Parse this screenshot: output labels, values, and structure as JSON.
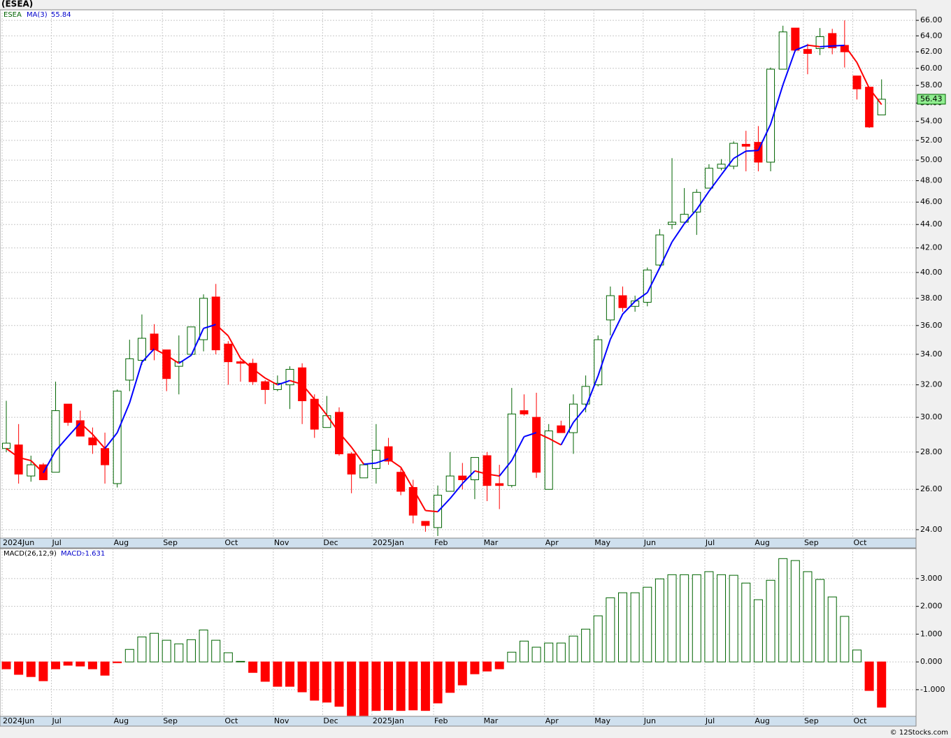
{
  "chart_data": [
    {
      "type": "candlestick",
      "title": "(ESEA)",
      "symbol": "ESEA",
      "ma_name": "MA(3)",
      "categories": [
        "2024Jun",
        null,
        null,
        null,
        "Jul",
        null,
        null,
        null,
        null,
        "Aug",
        null,
        null,
        null,
        "Sep",
        null,
        null,
        null,
        null,
        "Oct",
        null,
        null,
        null,
        "Nov",
        null,
        null,
        null,
        "Dec",
        null,
        null,
        null,
        "2025Jan",
        null,
        null,
        null,
        null,
        "Feb",
        null,
        null,
        null,
        "Mar",
        null,
        null,
        null,
        null,
        "Apr",
        null,
        null,
        null,
        "May",
        null,
        null,
        null,
        "Jun",
        null,
        null,
        null,
        null,
        "Jul",
        null,
        null,
        null,
        "Aug",
        null,
        null,
        null,
        "Sep",
        null,
        null,
        null,
        "Oct",
        null,
        null
      ],
      "open": [
        28.2,
        28.4,
        26.7,
        27.3,
        26.9,
        30.8,
        29.8,
        28.8,
        28.2,
        26.3,
        32.3,
        33.6,
        35.4,
        34.3,
        33.2,
        34.0,
        35.0,
        38.1,
        34.7,
        33.5,
        33.4,
        32.2,
        31.7,
        32.0,
        33.1,
        31.1,
        29.4,
        30.3,
        27.9,
        26.6,
        27.1,
        28.3,
        26.9,
        26.1,
        24.4,
        24.1,
        25.9,
        26.7,
        26.5,
        27.8,
        26.3,
        26.2,
        30.4,
        30.0,
        26.0,
        29.5,
        29.1,
        30.8,
        32.0,
        36.4,
        38.2,
        37.4,
        37.7,
        40.6,
        44.0,
        44.2,
        45.1,
        47.3,
        49.2,
        49.4,
        51.6,
        51.8,
        49.8,
        59.9,
        65.0,
        62.3,
        62.4,
        64.3,
        62.8,
        59.1,
        57.8,
        54.7
      ],
      "high": [
        31.0,
        29.6,
        27.8,
        27.4,
        32.2,
        30.8,
        30.4,
        29.4,
        29.1,
        31.7,
        35.0,
        36.8,
        36.1,
        34.3,
        35.3,
        35.9,
        38.3,
        39.1,
        34.9,
        33.6,
        33.7,
        32.3,
        32.6,
        33.2,
        33.4,
        31.4,
        31.3,
        30.6,
        28.0,
        27.4,
        29.6,
        28.8,
        27.1,
        26.5,
        24.4,
        26.2,
        28.0,
        27.4,
        27.7,
        28.0,
        27.3,
        31.8,
        31.4,
        31.5,
        29.6,
        29.8,
        31.4,
        32.6,
        35.3,
        38.9,
        38.9,
        38.2,
        40.4,
        43.6,
        50.2,
        47.3,
        47.2,
        49.6,
        50.1,
        51.9,
        53.0,
        53.5,
        60.1,
        65.3,
        65.0,
        63.0,
        65.0,
        64.9,
        66.0,
        59.1,
        57.8,
        58.7
      ],
      "low": [
        28.0,
        26.3,
        26.4,
        26.5,
        26.9,
        29.5,
        28.9,
        27.9,
        26.3,
        26.1,
        31.6,
        33.3,
        33.6,
        31.6,
        31.4,
        33.9,
        34.2,
        34.0,
        32.0,
        32.2,
        32.0,
        30.8,
        31.6,
        30.5,
        29.6,
        28.8,
        29.4,
        27.8,
        25.8,
        26.6,
        26.3,
        27.3,
        25.7,
        24.3,
        23.9,
        23.7,
        25.9,
        26.0,
        25.5,
        25.4,
        25.0,
        26.1,
        30.1,
        26.6,
        26.0,
        29.1,
        27.9,
        30.3,
        31.9,
        35.3,
        37.0,
        37.0,
        37.4,
        40.5,
        43.6,
        44.2,
        43.1,
        47.3,
        49.0,
        49.1,
        48.9,
        48.9,
        48.9,
        59.9,
        62.0,
        59.3,
        61.6,
        61.7,
        60.1,
        56.4,
        53.3,
        54.7
      ],
      "close": [
        28.5,
        26.8,
        27.3,
        26.5,
        30.4,
        29.7,
        28.9,
        28.4,
        27.3,
        31.6,
        33.7,
        35.1,
        34.3,
        32.4,
        33.5,
        35.9,
        38.0,
        34.3,
        33.5,
        33.4,
        32.2,
        31.7,
        32.1,
        33.0,
        31.0,
        29.3,
        30.1,
        27.9,
        26.8,
        27.3,
        28.1,
        27.5,
        25.9,
        24.7,
        24.2,
        25.7,
        26.7,
        26.5,
        27.7,
        26.2,
        26.2,
        30.2,
        30.2,
        26.9,
        29.2,
        29.1,
        30.8,
        31.9,
        35.0,
        38.2,
        37.3,
        37.8,
        40.2,
        43.1,
        44.2,
        44.9,
        46.9,
        49.2,
        49.6,
        51.7,
        51.4,
        49.8,
        59.9,
        64.5,
        62.2,
        61.8,
        63.9,
        62.5,
        62.0,
        57.6,
        53.4,
        56.43
      ],
      "last_price_label": "56.43",
      "ma": {
        "values": [
          28.2,
          27.7,
          27.53,
          26.87,
          28.07,
          28.87,
          29.67,
          29.0,
          28.2,
          29.1,
          30.87,
          33.47,
          34.37,
          33.93,
          33.4,
          33.93,
          35.8,
          36.07,
          35.27,
          33.73,
          33.03,
          32.43,
          32.0,
          32.27,
          32.03,
          31.1,
          30.13,
          29.1,
          28.27,
          27.33,
          27.4,
          27.63,
          27.17,
          26.03,
          24.93,
          24.87,
          25.53,
          26.3,
          26.97,
          26.8,
          26.7,
          27.53,
          28.87,
          29.1,
          28.77,
          28.4,
          29.7,
          30.6,
          32.57,
          35.03,
          36.83,
          37.77,
          38.43,
          40.37,
          42.5,
          44.07,
          45.33,
          47.0,
          48.57,
          50.17,
          50.9,
          50.97,
          53.7,
          58.07,
          62.2,
          62.83,
          62.63,
          62.73,
          62.8,
          60.7,
          57.67,
          55.84
        ],
        "current_label": "55.84",
        "up_color": "#0000ff",
        "down_color": "#ff0000"
      },
      "up_color": "#006400",
      "down_color": "#ff0000",
      "log_scale": true,
      "grid": true,
      "ylim": [
        23.6,
        67.4
      ],
      "yticks": [
        {
          "value": 24,
          "label": "24.00"
        },
        {
          "value": 26,
          "label": "26.00"
        },
        {
          "value": 28,
          "label": "28.00"
        },
        {
          "value": 30,
          "label": "30.00"
        },
        {
          "value": 32,
          "label": "32.00"
        },
        {
          "value": 34,
          "label": "34.00"
        },
        {
          "value": 36,
          "label": "36.00"
        },
        {
          "value": 38,
          "label": "38.00"
        },
        {
          "value": 40,
          "label": "40.00"
        },
        {
          "value": 42,
          "label": "42.00"
        },
        {
          "value": 44,
          "label": "44.00"
        },
        {
          "value": 46,
          "label": "46.00"
        },
        {
          "value": 48,
          "label": "48.00"
        },
        {
          "value": 50,
          "label": "50.00"
        },
        {
          "value": 52,
          "label": "52.00"
        },
        {
          "value": 54,
          "label": "54.00"
        },
        {
          "value": 56,
          "label": "56.00"
        },
        {
          "value": 58,
          "label": "58.00"
        },
        {
          "value": 60,
          "label": "60.00"
        },
        {
          "value": 62,
          "label": "62.00"
        },
        {
          "value": 64,
          "label": "64.00"
        },
        {
          "value": 66,
          "label": "66.00"
        }
      ]
    },
    {
      "type": "bar",
      "title": "MACD(26,12,9)",
      "name": "MACD:",
      "values": [
        -0.25,
        -0.45,
        -0.53,
        -0.68,
        -0.25,
        -0.12,
        -0.15,
        -0.25,
        -0.48,
        -0.03,
        0.45,
        0.9,
        1.03,
        0.78,
        0.65,
        0.8,
        1.15,
        0.78,
        0.33,
        0.02,
        -0.38,
        -0.7,
        -0.88,
        -0.88,
        -1.08,
        -1.38,
        -1.45,
        -1.6,
        -1.93,
        -1.93,
        -1.75,
        -1.73,
        -1.75,
        -1.73,
        -1.75,
        -1.48,
        -1.1,
        -0.83,
        -0.43,
        -0.33,
        -0.25,
        0.35,
        0.75,
        0.53,
        0.68,
        0.68,
        0.93,
        1.18,
        1.66,
        2.31,
        2.49,
        2.49,
        2.69,
        2.99,
        3.14,
        3.14,
        3.14,
        3.25,
        3.14,
        3.12,
        2.84,
        2.24,
        2.94,
        3.72,
        3.65,
        3.25,
        2.97,
        2.34,
        1.64,
        0.43,
        -1.03,
        -1.631
      ],
      "current_label": "-1.631",
      "up_color": "#006400",
      "down_color": "#ff0000",
      "grid": true,
      "ylim": [
        -1.96,
        4.08
      ],
      "yticks": [
        {
          "value": -1,
          "label": "-1.000"
        },
        {
          "value": 0,
          "label": "0.000"
        },
        {
          "value": 1,
          "label": "1.000"
        },
        {
          "value": 2,
          "label": "2.000"
        },
        {
          "value": 3,
          "label": "3.000"
        }
      ]
    }
  ],
  "footer": "© 12Stocks.com"
}
